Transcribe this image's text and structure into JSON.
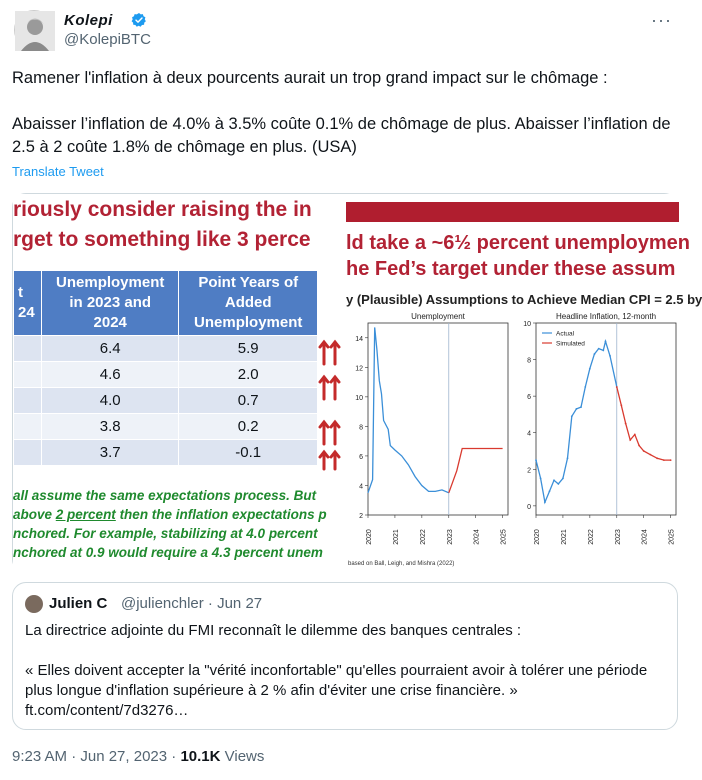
{
  "author": {
    "name": "Kolepi",
    "handle": "@KolepiBTC",
    "more_label": "···"
  },
  "tweet": {
    "paragraph1": "Ramener l'inflation à deux pourcents aurait un trop grand impact sur le chômage :",
    "paragraph2": "Abaisser l’inflation de 4.0% à 3.5% coûte 0.1% de chômage de plus. Abaisser l’inflation de 2.5 à 2 coûte 1.8% de chômage en plus. (USA)",
    "translate_label": "Translate Tweet"
  },
  "media": {
    "left": {
      "headline1": "riously consider raising the in",
      "headline2": "rget to something like 3 perce",
      "table": {
        "headers": [
          "t\n24",
          "Unemployment in 2023 and 2024",
          "Point Years of Added Unemployment"
        ],
        "rows": [
          [
            "",
            "6.4",
            "5.9"
          ],
          [
            "",
            "4.6",
            "2.0"
          ],
          [
            "",
            "4.0",
            "0.7"
          ],
          [
            "",
            "3.8",
            "0.2"
          ],
          [
            "",
            "3.7",
            "-0.1"
          ]
        ]
      },
      "note": {
        "line1": "all assume the same expectations process. But",
        "line2a": "above ",
        "line2b": "2 percent",
        "line2c": " then the inflation expectations p",
        "line3": "nchored. For example, stabilizing at 4.0 percent",
        "line4": "nchored at 0.9 would require a 4.3 percent unem"
      }
    },
    "right": {
      "headline1": "ld take a ~6½ percent unemploymen",
      "headline2": "he Fed’s target under these assum",
      "subtitle": "y (Plausible) Assumptions to Achieve Median CPI = 2.5 by",
      "source": "based on Ball, Leigh, and Mishra (2022)"
    }
  },
  "chart_data": [
    {
      "type": "line",
      "title": "Unemployment",
      "x_ticks": [
        "2020",
        "2021",
        "2022",
        "2023",
        "2024",
        "2025"
      ],
      "ylim": [
        2,
        15
      ],
      "y_ticks": [
        2,
        4,
        6,
        8,
        10,
        12,
        14
      ],
      "series": [
        {
          "color": "#3b8fd8",
          "points": [
            [
              2020.0,
              3.5
            ],
            [
              2020.17,
              4.4
            ],
            [
              2020.25,
              14.7
            ],
            [
              2020.33,
              13.2
            ],
            [
              2020.42,
              11.1
            ],
            [
              2020.5,
              10.2
            ],
            [
              2020.58,
              8.4
            ],
            [
              2020.75,
              7.8
            ],
            [
              2020.83,
              6.7
            ],
            [
              2021.0,
              6.4
            ],
            [
              2021.25,
              6.0
            ],
            [
              2021.5,
              5.4
            ],
            [
              2021.75,
              4.6
            ],
            [
              2022.0,
              4.0
            ],
            [
              2022.25,
              3.6
            ],
            [
              2022.5,
              3.6
            ],
            [
              2022.75,
              3.7
            ],
            [
              2023.0,
              3.5
            ]
          ]
        },
        {
          "color": "#d93a2f",
          "points": [
            [
              2023.0,
              3.5
            ],
            [
              2023.3,
              5.0
            ],
            [
              2023.5,
              6.5
            ],
            [
              2024.0,
              6.5
            ],
            [
              2024.5,
              6.5
            ],
            [
              2025.0,
              6.5
            ]
          ]
        }
      ],
      "vline_x": 2023.0
    },
    {
      "type": "line",
      "title": "Headline Inflation, 12-month",
      "x_ticks": [
        "2020",
        "2021",
        "2022",
        "2023",
        "2024",
        "2025"
      ],
      "ylim": [
        -0.5,
        10
      ],
      "y_ticks": [
        0,
        2,
        4,
        6,
        8,
        10
      ],
      "legend": [
        "Actual",
        "Simulated"
      ],
      "series": [
        {
          "name": "Actual",
          "color": "#3b8fd8",
          "points": [
            [
              2020.0,
              2.5
            ],
            [
              2020.17,
              1.5
            ],
            [
              2020.33,
              0.2
            ],
            [
              2020.5,
              0.8
            ],
            [
              2020.67,
              1.4
            ],
            [
              2020.83,
              1.2
            ],
            [
              2021.0,
              1.5
            ],
            [
              2021.17,
              2.6
            ],
            [
              2021.33,
              4.9
            ],
            [
              2021.5,
              5.3
            ],
            [
              2021.67,
              5.4
            ],
            [
              2021.83,
              6.5
            ],
            [
              2022.0,
              7.5
            ],
            [
              2022.17,
              8.3
            ],
            [
              2022.33,
              8.6
            ],
            [
              2022.5,
              8.5
            ],
            [
              2022.58,
              9.0
            ],
            [
              2022.75,
              8.2
            ],
            [
              2023.0,
              6.5
            ]
          ]
        },
        {
          "name": "Simulated",
          "color": "#d93a2f",
          "points": [
            [
              2023.0,
              6.5
            ],
            [
              2023.17,
              5.5
            ],
            [
              2023.33,
              4.5
            ],
            [
              2023.5,
              3.6
            ],
            [
              2023.67,
              3.9
            ],
            [
              2023.83,
              3.3
            ],
            [
              2024.0,
              3.0
            ],
            [
              2024.25,
              2.8
            ],
            [
              2024.5,
              2.6
            ],
            [
              2024.75,
              2.5
            ],
            [
              2025.0,
              2.5
            ]
          ]
        }
      ],
      "vline_x": 2023.0
    }
  ],
  "quote": {
    "name": "Julien C",
    "handle_date": "@julienchler · Jun 27",
    "line1": "La directrice adjointe du FMI reconnaît le dilemme des banques centrales :",
    "line2": "« Elles doivent accepter la \"vérité inconfortable\" qu'elles pourraient avoir à tolérer une période plus longue d'inflation supérieure à 2 % afin d'éviter une crise financière. »",
    "line3": "ft.com/content/7d3276…"
  },
  "footer": {
    "time_date": "9:23 AM · Jun 27, 2023 · ",
    "views_count": "10.1K",
    "views_label": " Views"
  },
  "colors": {
    "link": "#1d9bf0",
    "verified": "#1d9bf0",
    "muted": "#536471",
    "slide_red": "#b22234",
    "table_header": "#4f7dc4",
    "note_green": "#1f8a2e"
  }
}
